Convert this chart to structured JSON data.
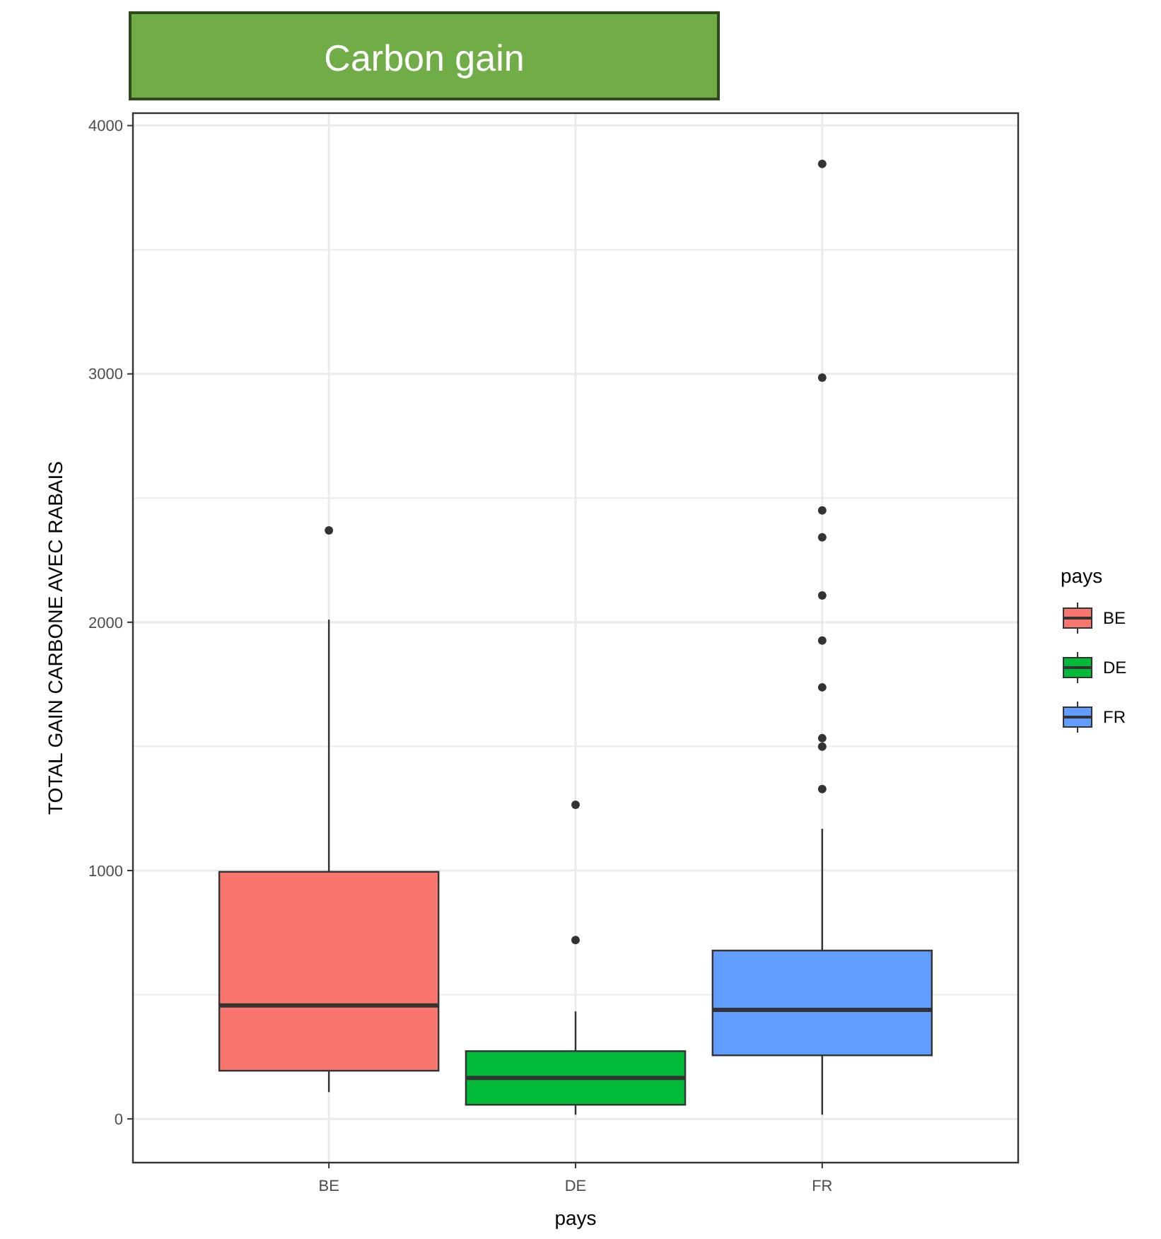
{
  "chart_data": {
    "type": "box",
    "title": "Carbon gain",
    "xlabel": "pays",
    "ylabel": "TOTAL GAIN CARBONE AVEC RABAIS",
    "legend_title": "pays",
    "categories": [
      "BE",
      "DE",
      "FR"
    ],
    "series": [
      {
        "name": "BE",
        "color": "#f8766d",
        "boxes": [
          {
            "low": 108,
            "q1": 194,
            "median": 457,
            "q3": 995,
            "high": 2010,
            "outliers": [
              2370
            ]
          },
          null,
          null
        ]
      },
      {
        "name": "DE",
        "color": "#00ba38",
        "boxes": [
          null,
          {
            "low": 17,
            "q1": 57,
            "median": 165,
            "q3": 273,
            "high": 433,
            "outliers": [
              720,
              1265
            ]
          },
          null
        ]
      },
      {
        "name": "FR",
        "color": "#619cff",
        "boxes": [
          null,
          null,
          {
            "low": 17,
            "q1": 256,
            "median": 439,
            "q3": 678,
            "high": 1168,
            "outliers": [
              1328,
              1499,
              1533,
              1738,
              1926,
              2108,
              2342,
              2450,
              2985,
              3846
            ]
          }
        ]
      }
    ],
    "ylim": [
      -176,
      4050
    ],
    "yticks": [
      0,
      1000,
      2000,
      3000,
      4000
    ],
    "grid": true,
    "legend": "right"
  }
}
